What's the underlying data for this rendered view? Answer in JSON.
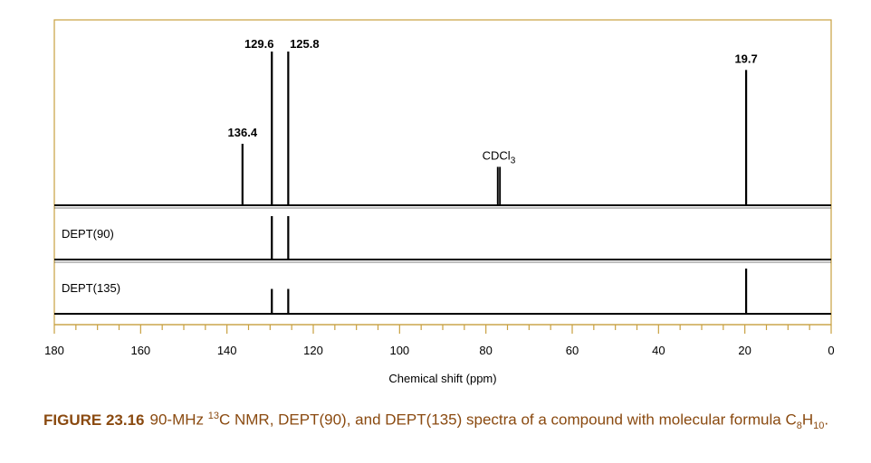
{
  "chart_data": {
    "type": "spectrum",
    "xlabel": "Chemical shift (ppm)",
    "xlim": [
      180,
      0
    ],
    "x_reversed": true,
    "x_ticks": [
      180,
      160,
      140,
      120,
      100,
      80,
      60,
      40,
      20,
      0
    ],
    "colors": {
      "frame": "#c8a040",
      "trace": "#000000",
      "caption": "#8a4a10"
    },
    "panels": [
      {
        "name": "",
        "peaks": [
          {
            "x": 136.4,
            "height": 0.4,
            "label": "136.4"
          },
          {
            "x": 129.6,
            "height": 1.0,
            "label": "129.6"
          },
          {
            "x": 125.8,
            "height": 1.0,
            "label": "125.8"
          },
          {
            "x": 77.0,
            "height": 0.25,
            "label": "CDCl3",
            "label_main": "CDCl",
            "label_sub": "3"
          },
          {
            "x": 19.7,
            "height": 0.88,
            "label": "19.7"
          }
        ]
      },
      {
        "name": "DEPT(90)",
        "peaks": [
          {
            "x": 129.6,
            "height": 1.0
          },
          {
            "x": 125.8,
            "height": 1.0
          }
        ]
      },
      {
        "name": "DEPT(135)",
        "peaks": [
          {
            "x": 129.6,
            "height": 0.55
          },
          {
            "x": 125.8,
            "height": 0.55
          },
          {
            "x": 19.7,
            "height": 1.0
          }
        ]
      }
    ]
  },
  "caption": {
    "figure_label": "FIGURE 23.16",
    "text_1": "90-MHz ",
    "superscript": "13",
    "text_2": "C NMR, DEPT(90), and DEPT(135) spectra of a compound with molecular formula C",
    "sub_1": "8",
    "text_3": "H",
    "sub_2": "10",
    "text_4": "."
  }
}
